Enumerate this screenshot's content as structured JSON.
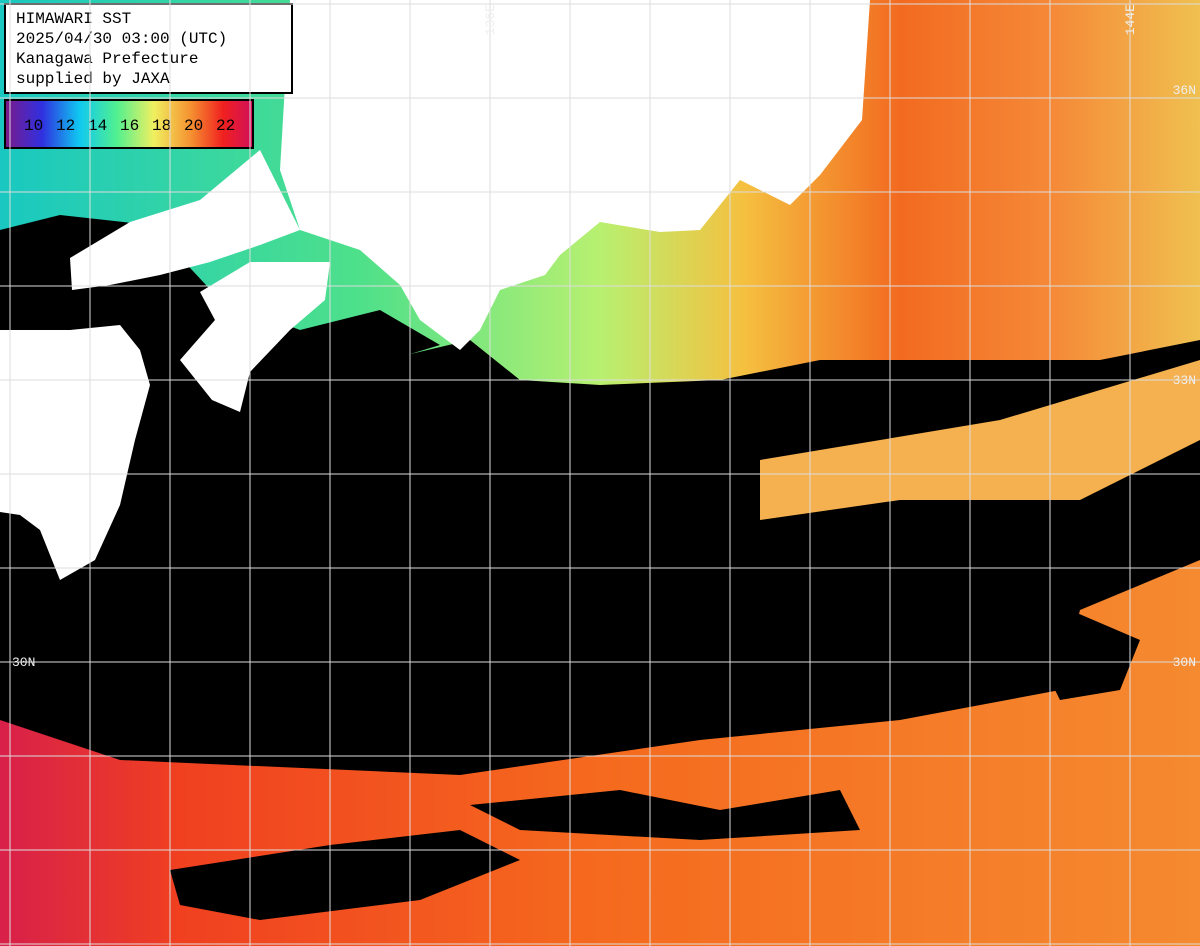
{
  "header": {
    "lines": [
      "HIMAWARI SST",
      "2025/04/30 03:00 (UTC)",
      "Kanagawa Prefecture",
      "supplied by JAXA"
    ]
  },
  "legend": {
    "labels": [
      "10",
      "12",
      "14",
      "16",
      "18",
      "20",
      "22"
    ]
  },
  "grid": {
    "lon_labels": [
      "136E",
      "144E"
    ],
    "lat_labels": [
      "36N",
      "33N",
      "30N"
    ]
  }
}
